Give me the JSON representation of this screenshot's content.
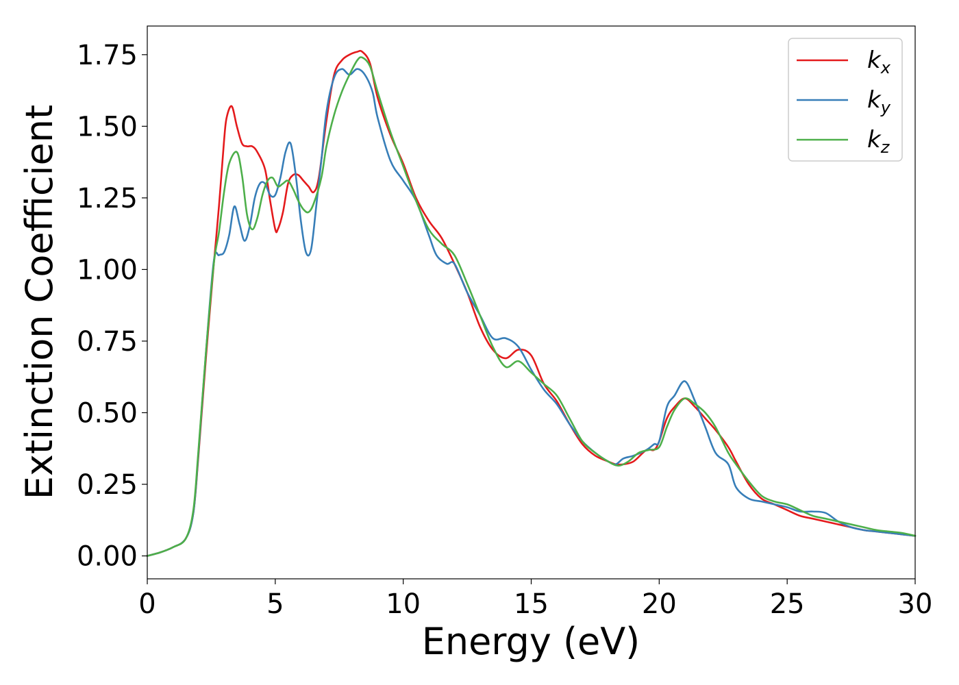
{
  "chart_data": {
    "type": "line",
    "xlabel": "Energy (eV)",
    "ylabel": "Extinction Coefficient",
    "xlim": [
      0,
      30
    ],
    "ylim": [
      -0.08,
      1.85
    ],
    "xticks": [
      "0",
      "5",
      "10",
      "15",
      "20",
      "25",
      "30"
    ],
    "yticks": [
      "0.00",
      "0.25",
      "0.50",
      "0.75",
      "1.00",
      "1.25",
      "1.50",
      "1.75"
    ],
    "grid": false,
    "legend_position": "top-right",
    "series": [
      {
        "name": "k",
        "subscript": "x",
        "color": "#e41a1c",
        "x": [
          0,
          0.5,
          1,
          1.5,
          1.8,
          2,
          2.3,
          2.6,
          2.8,
          3,
          3.1,
          3.3,
          3.5,
          3.7,
          3.9,
          4.1,
          4.3,
          4.6,
          4.8,
          5,
          5.1,
          5.3,
          5.5,
          5.7,
          5.9,
          6.1,
          6.3,
          6.5,
          6.7,
          7,
          7.3,
          7.6,
          7.9,
          8.2,
          8.4,
          8.7,
          9,
          9.5,
          10,
          10.5,
          11,
          11.5,
          12,
          12.5,
          13,
          13.5,
          14,
          14.5,
          15,
          15.5,
          16,
          16.5,
          17,
          17.5,
          18,
          18.3,
          18.6,
          19,
          19.5,
          19.8,
          20,
          20.3,
          20.6,
          21,
          21.4,
          21.8,
          22.2,
          22.7,
          23,
          23.5,
          24,
          24.5,
          25,
          25.5,
          26,
          26.5,
          27,
          27.5,
          28,
          28.5,
          29,
          29.5,
          30
        ],
        "y": [
          0,
          0.012,
          0.03,
          0.06,
          0.15,
          0.35,
          0.7,
          1.02,
          1.22,
          1.45,
          1.53,
          1.57,
          1.5,
          1.44,
          1.43,
          1.43,
          1.41,
          1.35,
          1.24,
          1.14,
          1.14,
          1.2,
          1.3,
          1.33,
          1.33,
          1.31,
          1.29,
          1.27,
          1.32,
          1.52,
          1.68,
          1.73,
          1.75,
          1.76,
          1.76,
          1.72,
          1.6,
          1.47,
          1.37,
          1.25,
          1.17,
          1.11,
          1.02,
          0.92,
          0.8,
          0.72,
          0.69,
          0.72,
          0.7,
          0.6,
          0.54,
          0.46,
          0.39,
          0.35,
          0.33,
          0.32,
          0.32,
          0.33,
          0.37,
          0.37,
          0.4,
          0.48,
          0.52,
          0.55,
          0.52,
          0.48,
          0.44,
          0.38,
          0.33,
          0.25,
          0.2,
          0.18,
          0.16,
          0.14,
          0.13,
          0.12,
          0.11,
          0.1,
          0.09,
          0.085,
          0.08,
          0.075,
          0.07
        ]
      },
      {
        "name": "k",
        "subscript": "y",
        "color": "#377eb8",
        "x": [
          0,
          0.5,
          1,
          1.5,
          1.8,
          2,
          2.3,
          2.6,
          2.8,
          3,
          3.2,
          3.4,
          3.6,
          3.8,
          4,
          4.2,
          4.4,
          4.6,
          4.8,
          5,
          5.2,
          5.4,
          5.6,
          5.8,
          6,
          6.2,
          6.4,
          6.6,
          6.8,
          7,
          7.3,
          7.6,
          7.9,
          8.2,
          8.5,
          8.8,
          9,
          9.5,
          10,
          10.5,
          11,
          11.3,
          11.7,
          12,
          12.5,
          13,
          13.5,
          14,
          14.5,
          15,
          15.5,
          16,
          16.5,
          17,
          17.5,
          18,
          18.3,
          18.6,
          19,
          19.5,
          19.8,
          20,
          20.3,
          20.6,
          21,
          21.4,
          21.8,
          22.2,
          22.7,
          23,
          23.5,
          24,
          24.5,
          25,
          25.5,
          26,
          26.5,
          27,
          27.5,
          28,
          28.5,
          29,
          29.5,
          30
        ],
        "y": [
          0,
          0.012,
          0.03,
          0.06,
          0.15,
          0.36,
          0.72,
          1.03,
          1.05,
          1.06,
          1.12,
          1.22,
          1.16,
          1.1,
          1.15,
          1.25,
          1.3,
          1.3,
          1.26,
          1.26,
          1.32,
          1.41,
          1.44,
          1.33,
          1.17,
          1.06,
          1.07,
          1.22,
          1.38,
          1.55,
          1.67,
          1.7,
          1.68,
          1.7,
          1.68,
          1.62,
          1.53,
          1.38,
          1.31,
          1.24,
          1.12,
          1.05,
          1.02,
          1.02,
          0.92,
          0.84,
          0.76,
          0.76,
          0.73,
          0.65,
          0.58,
          0.53,
          0.46,
          0.4,
          0.36,
          0.33,
          0.32,
          0.34,
          0.35,
          0.37,
          0.39,
          0.4,
          0.52,
          0.56,
          0.61,
          0.54,
          0.45,
          0.36,
          0.32,
          0.24,
          0.2,
          0.19,
          0.18,
          0.17,
          0.155,
          0.155,
          0.15,
          0.12,
          0.1,
          0.09,
          0.085,
          0.08,
          0.075,
          0.07
        ]
      },
      {
        "name": "k",
        "subscript": "z",
        "color": "#4daf4a",
        "x": [
          0,
          0.5,
          1,
          1.5,
          1.8,
          2,
          2.3,
          2.6,
          2.8,
          3,
          3.2,
          3.5,
          3.7,
          3.9,
          4.1,
          4.3,
          4.5,
          4.7,
          4.9,
          5.1,
          5.3,
          5.5,
          5.7,
          5.9,
          6.1,
          6.3,
          6.5,
          6.8,
          7,
          7.3,
          7.6,
          7.9,
          8.2,
          8.4,
          8.7,
          9,
          9.5,
          10,
          10.5,
          11,
          11.5,
          12,
          12.5,
          13,
          13.5,
          14,
          14.5,
          15,
          15.5,
          16,
          16.5,
          17,
          17.5,
          18,
          18.4,
          18.8,
          19.2,
          19.6,
          20,
          20.3,
          20.6,
          21,
          21.4,
          21.8,
          22.2,
          22.7,
          23,
          23.5,
          24,
          24.5,
          25,
          25.5,
          26,
          26.5,
          27,
          27.5,
          28,
          28.5,
          29,
          29.5,
          30
        ],
        "y": [
          0,
          0.012,
          0.03,
          0.06,
          0.16,
          0.37,
          0.72,
          1.02,
          1.13,
          1.27,
          1.37,
          1.41,
          1.33,
          1.19,
          1.14,
          1.18,
          1.26,
          1.31,
          1.32,
          1.29,
          1.3,
          1.31,
          1.28,
          1.24,
          1.21,
          1.2,
          1.23,
          1.32,
          1.43,
          1.54,
          1.62,
          1.68,
          1.73,
          1.74,
          1.71,
          1.62,
          1.48,
          1.36,
          1.24,
          1.14,
          1.09,
          1.05,
          0.95,
          0.84,
          0.73,
          0.66,
          0.68,
          0.64,
          0.6,
          0.56,
          0.48,
          0.4,
          0.36,
          0.33,
          0.315,
          0.33,
          0.36,
          0.37,
          0.38,
          0.45,
          0.51,
          0.55,
          0.53,
          0.5,
          0.45,
          0.36,
          0.32,
          0.26,
          0.21,
          0.19,
          0.18,
          0.16,
          0.14,
          0.13,
          0.12,
          0.11,
          0.1,
          0.09,
          0.085,
          0.08,
          0.07
        ]
      }
    ]
  }
}
